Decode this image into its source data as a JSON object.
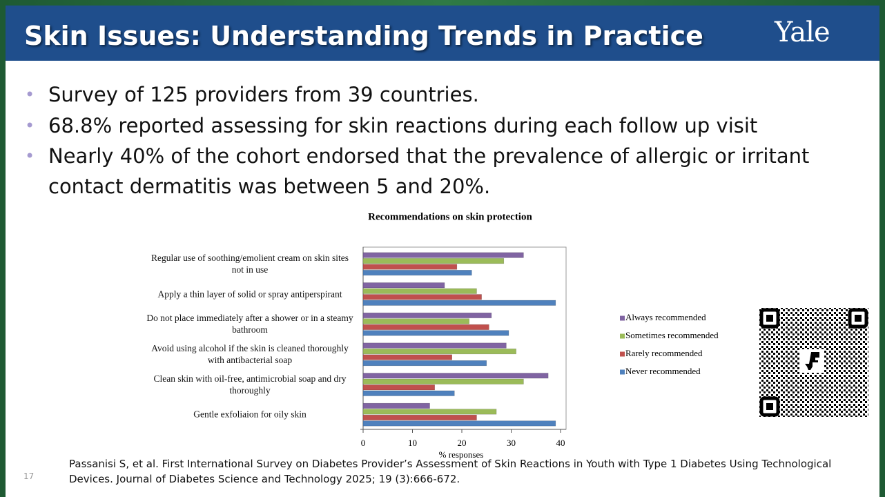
{
  "header": {
    "title": "Skin Issues: Understanding Trends in Practice",
    "logo": "Yale"
  },
  "bullets": [
    "Survey of 125 providers from 39 countries.",
    "68.8% reported assessing for skin reactions during each follow up visit",
    "Nearly 40% of the cohort endorsed that the prevalence of allergic or irritant contact dermatitis was between 5 and 20%."
  ],
  "chart_data": {
    "type": "bar",
    "orientation": "horizontal",
    "title": "Recommendations on skin protection",
    "x_label": "% responses",
    "categories": [
      "Regular use of soothing/emolient cream on skin sites not in use",
      "Apply a thin layer of solid or spray antiperspirant",
      "Do not place immediately after a shower or in a steamy bathroom",
      "Avoid using alcohol if the skin is cleaned thoroughly with antibacterial soap",
      "Clean skin with oil-free, antimicrobial soap and dry thoroughly",
      "Gentle exfoliaion for oily skin"
    ],
    "series": [
      {
        "name": "Always recommended",
        "color": "#8064a2",
        "values": [
          32.5,
          16.5,
          26,
          29,
          37.5,
          13.5
        ]
      },
      {
        "name": "Sometimes recommended",
        "color": "#9bbb59",
        "values": [
          28.5,
          23,
          21.5,
          31,
          32.5,
          27
        ]
      },
      {
        "name": "Rarely recommended",
        "color": "#c0504d",
        "values": [
          19,
          24,
          25.5,
          18,
          14.5,
          23
        ]
      },
      {
        "name": "Never recommended",
        "color": "#4f81bd",
        "values": [
          22,
          39,
          29.5,
          25,
          18.5,
          39
        ]
      }
    ],
    "xlim": [
      0,
      40
    ],
    "xticks": [
      0,
      10,
      20,
      30,
      40
    ],
    "legend": "right"
  },
  "citation": "Passanisi S, et al.  First International Survey on Diabetes Provider’s Assessment of Skin Reactions in Youth with Type 1 Diabetes Using Technological Devices.  Journal of Diabetes Science and Technology 2025; 19 (3):666-672.",
  "slide_number": "17"
}
